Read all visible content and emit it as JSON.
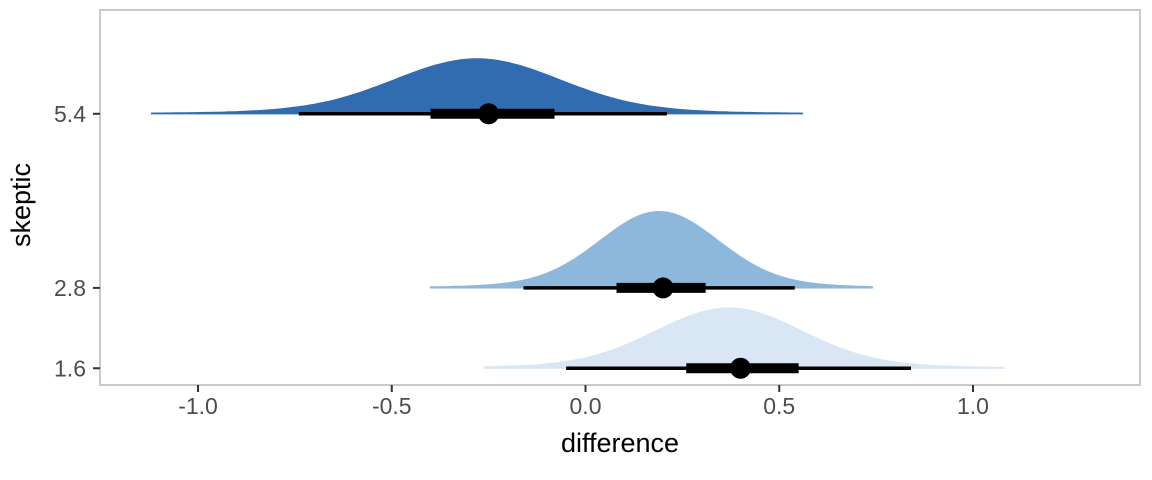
{
  "chart_data": {
    "type": "area",
    "variant": "halfeye-ridgeline-posterior",
    "title": "",
    "xlabel": "difference",
    "ylabel": "skeptic",
    "xlim": [
      -1.253,
      1.431
    ],
    "ylim": [
      1.35,
      6.95
    ],
    "grid": false,
    "legend": "none",
    "panel_border_color": "#c9c9c9",
    "interval_color": "#000000",
    "x_ticks": [
      {
        "value": -1.0,
        "label": "-1.0"
      },
      {
        "value": -0.5,
        "label": "-0.5"
      },
      {
        "value": 0.0,
        "label": "0.0"
      },
      {
        "value": 0.5,
        "label": "0.5"
      },
      {
        "value": 1.0,
        "label": "1.0"
      }
    ],
    "rows": [
      {
        "y_value": 5.4,
        "y_label": "5.4",
        "fill": "#316cb0",
        "median": -0.25,
        "interval_inner": [
          -0.4,
          -0.08
        ],
        "interval_outer": [
          -0.74,
          0.21
        ],
        "density": {
          "center": -0.28,
          "sd": 0.21,
          "span": [
            -1.12,
            0.56
          ],
          "peak": 0.82
        }
      },
      {
        "y_value": 2.8,
        "y_label": "2.8",
        "fill": "#8db8dc",
        "median": 0.2,
        "interval_inner": [
          0.08,
          0.31
        ],
        "interval_outer": [
          -0.16,
          0.54
        ],
        "density": {
          "center": 0.19,
          "sd": 0.15,
          "span": [
            -0.4,
            0.74
          ],
          "peak": 1.14
        }
      },
      {
        "y_value": 1.6,
        "y_label": "1.6",
        "fill": "#d9e6f3",
        "median": 0.4,
        "interval_inner": [
          0.26,
          0.55
        ],
        "interval_outer": [
          -0.05,
          0.84
        ],
        "density": {
          "center": 0.37,
          "sd": 0.185,
          "span": [
            -0.26,
            1.08
          ],
          "peak": 0.9
        }
      }
    ]
  }
}
